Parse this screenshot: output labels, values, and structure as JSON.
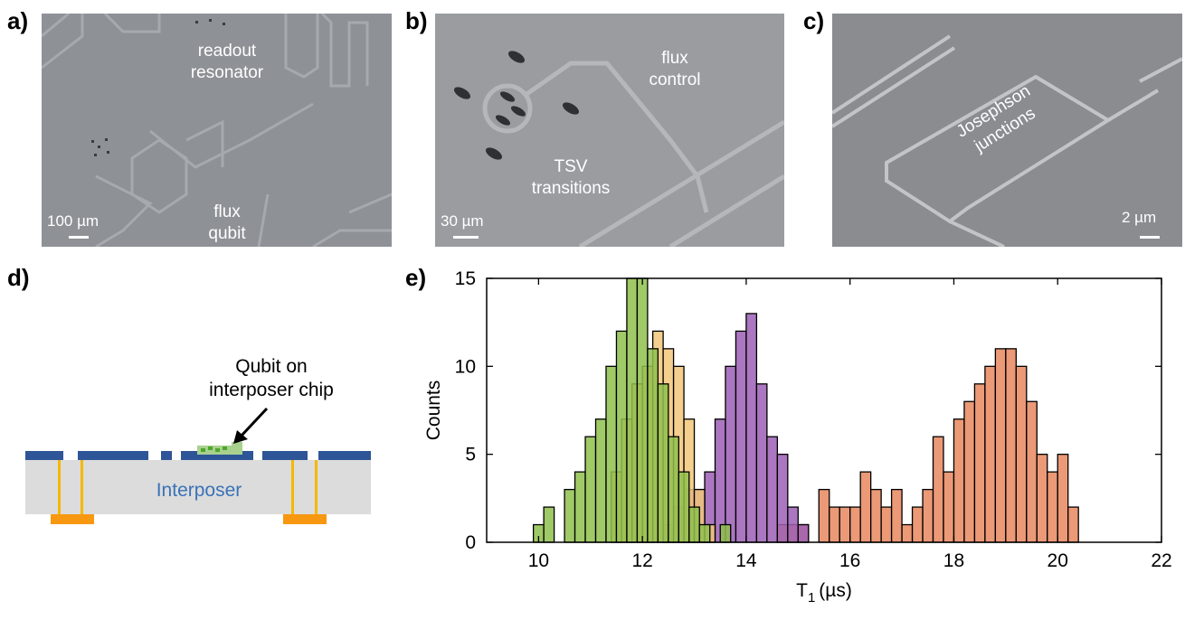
{
  "panels": {
    "a": {
      "label": "a)",
      "annotations": [
        "readout\nresonator",
        "flux\nqubit"
      ],
      "scale_bar": "100 µm"
    },
    "b": {
      "label": "b)",
      "annotations": [
        "flux\ncontrol",
        "TSV\ntransitions"
      ],
      "scale_bar": "30 µm"
    },
    "c": {
      "label": "c)",
      "annotations": [
        "Josephson\njunctions"
      ],
      "scale_bar": "2 µm"
    },
    "d": {
      "label": "d)",
      "callout": [
        "Qubit on",
        "interposer chip"
      ],
      "interposer_label": "Interposer",
      "colors": {
        "metal": "#2e5597",
        "interposer": "#dcdcdc",
        "tsv": "#f5b800",
        "pad": "#f79810",
        "qubit_light": "#a9d18e",
        "qubit_dark": "#4ea72e",
        "interposer_text": "#3a72b8"
      }
    },
    "e": {
      "label": "e)"
    }
  },
  "chart_data": {
    "type": "histogram",
    "xlabel_main": "T",
    "xlabel_sub": "1",
    "xlabel_unit": "(µs)",
    "ylabel": "Counts",
    "xlim": [
      9,
      22
    ],
    "ylim": [
      0,
      15
    ],
    "xticks": [
      10,
      12,
      14,
      16,
      18,
      20,
      22
    ],
    "yticks": [
      0,
      5,
      10,
      15
    ],
    "bin_width": 0.2,
    "series": [
      {
        "color": "#e8875e",
        "bins": [
          [
            14.6,
            1
          ],
          [
            14.8,
            1
          ],
          [
            15.0,
            1
          ],
          [
            15.2,
            0
          ],
          [
            15.4,
            3
          ],
          [
            15.6,
            2
          ],
          [
            15.8,
            2
          ],
          [
            16.0,
            2
          ],
          [
            16.2,
            4
          ],
          [
            16.4,
            3
          ],
          [
            16.6,
            2
          ],
          [
            16.8,
            3
          ],
          [
            17.0,
            1
          ],
          [
            17.2,
            2
          ],
          [
            17.4,
            3
          ],
          [
            17.6,
            6
          ],
          [
            17.8,
            4
          ],
          [
            18.0,
            7
          ],
          [
            18.2,
            8
          ],
          [
            18.4,
            9
          ],
          [
            18.6,
            10
          ],
          [
            18.8,
            11
          ],
          [
            19.0,
            11
          ],
          [
            19.2,
            10
          ],
          [
            19.4,
            8
          ],
          [
            19.6,
            5
          ],
          [
            19.8,
            4
          ],
          [
            20.0,
            5
          ],
          [
            20.2,
            2
          ]
        ]
      },
      {
        "color": "#9c5fb5",
        "bins": [
          [
            12.4,
            1
          ],
          [
            12.6,
            2
          ],
          [
            12.8,
            3
          ],
          [
            13.0,
            3
          ],
          [
            13.2,
            4
          ],
          [
            13.4,
            7
          ],
          [
            13.6,
            10
          ],
          [
            13.8,
            12
          ],
          [
            14.0,
            13
          ],
          [
            14.2,
            9
          ],
          [
            14.4,
            6
          ],
          [
            14.6,
            5
          ],
          [
            14.8,
            2
          ],
          [
            15.0,
            1
          ]
        ]
      },
      {
        "color": "#f2c77a",
        "bins": [
          [
            11.4,
            4
          ],
          [
            11.6,
            7
          ],
          [
            11.8,
            9
          ],
          [
            12.0,
            10
          ],
          [
            12.2,
            12
          ],
          [
            12.4,
            11
          ],
          [
            12.6,
            10
          ],
          [
            12.8,
            7
          ],
          [
            13.0,
            3
          ],
          [
            13.2,
            1
          ]
        ]
      },
      {
        "color": "#8fbf4c",
        "bins": [
          [
            9.9,
            1
          ],
          [
            10.1,
            2
          ],
          [
            10.3,
            0
          ],
          [
            10.5,
            3
          ],
          [
            10.7,
            4
          ],
          [
            10.9,
            6
          ],
          [
            11.1,
            7
          ],
          [
            11.3,
            10
          ],
          [
            11.5,
            12
          ],
          [
            11.7,
            15
          ],
          [
            11.9,
            15
          ],
          [
            12.1,
            11
          ],
          [
            12.3,
            9
          ],
          [
            12.5,
            6
          ],
          [
            12.7,
            4
          ],
          [
            12.9,
            2
          ],
          [
            13.1,
            1
          ],
          [
            13.3,
            0
          ],
          [
            13.5,
            1
          ]
        ]
      }
    ]
  }
}
